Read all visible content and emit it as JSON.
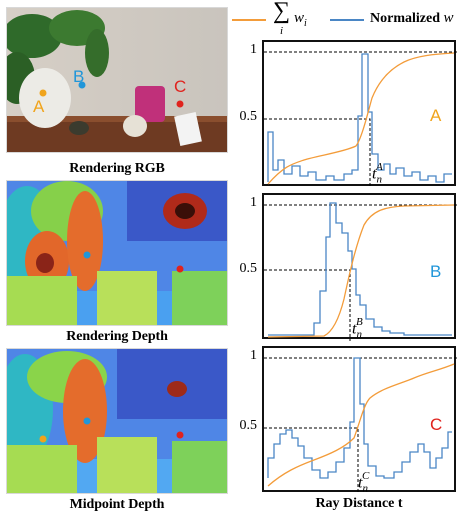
{
  "legend": {
    "sum_symbol": "∑",
    "sum_index": "i",
    "sum_term": "w",
    "sum_term_sub": "i",
    "normalized_label": "Normalized ",
    "normalized_var": "w",
    "colors": {
      "cumulative": "#f39c3a",
      "weights": "#4a86c5"
    }
  },
  "captions": {
    "rgb": "Rendering RGB",
    "depth": "Rendering Depth",
    "midpoint": "Midpoint Depth"
  },
  "points": {
    "A": {
      "label": "A",
      "color": "#f0a41c"
    },
    "B": {
      "label": "B",
      "color": "#2196d9"
    },
    "C": {
      "label": "C",
      "color": "#e0231e"
    }
  },
  "plots": [
    {
      "id": "A",
      "letter": "A",
      "letter_color": "#f0a41c",
      "ytick_top": "1",
      "ytick_mid": "0.5",
      "tn_base": "t",
      "tn_sub": "n",
      "tn_sup": "A"
    },
    {
      "id": "B",
      "letter": "B",
      "letter_color": "#2196d9",
      "ytick_top": "1",
      "ytick_mid": "0.5",
      "tn_base": "t",
      "tn_sub": "n",
      "tn_sup": "B"
    },
    {
      "id": "C",
      "letter": "C",
      "letter_color": "#e0231e",
      "ytick_top": "1",
      "ytick_mid": "0.5",
      "tn_base": "t",
      "tn_sub": "n",
      "tn_sup": "C"
    }
  ],
  "xlabel": "Ray Distance t"
}
